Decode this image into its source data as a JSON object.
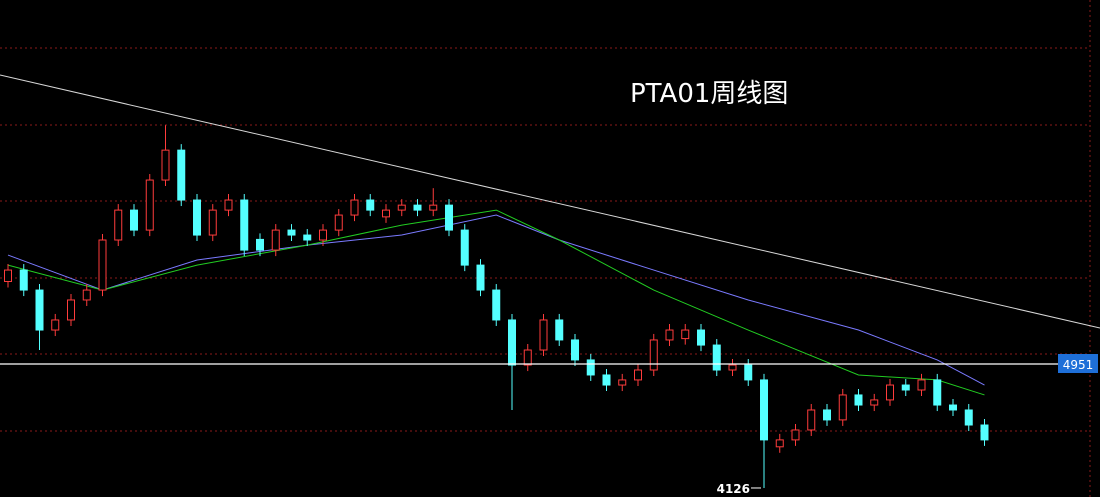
{
  "chart_data": {
    "type": "candlestick",
    "title": "PTA01周线图",
    "open": [
      5500,
      5576,
      5443,
      5177,
      5244,
      5377,
      5443,
      5776,
      5975,
      5842,
      6175,
      6374,
      6042,
      5809,
      5975,
      6042,
      5780,
      5709,
      5842,
      5809,
      5776,
      5842,
      5942,
      6042,
      5930,
      5975,
      6008,
      5975,
      6008,
      5842,
      5609,
      5443,
      5244,
      4944,
      5044,
      5244,
      5111,
      4978,
      4878,
      4811,
      4845,
      4911,
      5111,
      5120,
      5177,
      5077,
      4911,
      4944,
      4845,
      4400,
      4446,
      4512,
      4645,
      4579,
      4745,
      4678,
      4712,
      4811,
      4778,
      4845,
      4678,
      4645,
      4545
    ],
    "high": [
      5616,
      5616,
      5483,
      5284,
      5417,
      5483,
      5816,
      6015,
      6015,
      6215,
      6540,
      6414,
      6082,
      6015,
      6082,
      6082,
      5820,
      5882,
      5882,
      5849,
      5882,
      5982,
      6082,
      6082,
      6015,
      6048,
      6048,
      6121,
      6048,
      5882,
      5649,
      5483,
      5284,
      5084,
      5284,
      5284,
      5151,
      5018,
      4918,
      4885,
      4951,
      5151,
      5217,
      5217,
      5217,
      5117,
      4984,
      4984,
      4885,
      4486,
      4552,
      4685,
      4685,
      4785,
      4785,
      4752,
      4851,
      4851,
      4885,
      4885,
      4718,
      4685,
      4585
    ],
    "low": [
      5460,
      5403,
      5044,
      5137,
      5204,
      5337,
      5403,
      5736,
      5802,
      5802,
      6135,
      6002,
      5769,
      5769,
      5935,
      5669,
      5669,
      5669,
      5769,
      5736,
      5736,
      5802,
      5902,
      5935,
      5890,
      5935,
      5935,
      5935,
      5802,
      5569,
      5403,
      5204,
      4645,
      4904,
      5004,
      5071,
      4938,
      4838,
      4771,
      4771,
      4805,
      4871,
      5071,
      5080,
      5037,
      4871,
      4871,
      4805,
      4126,
      4360,
      4406,
      4472,
      4539,
      4539,
      4638,
      4638,
      4672,
      4738,
      4738,
      4638,
      4605,
      4505,
      4406
    ],
    "close": [
      5576,
      5443,
      5177,
      5244,
      5377,
      5443,
      5776,
      5975,
      5842,
      6175,
      6374,
      6042,
      5809,
      5975,
      6042,
      5709,
      5709,
      5842,
      5809,
      5776,
      5842,
      5942,
      6042,
      5975,
      5975,
      6008,
      5975,
      6008,
      5842,
      5609,
      5443,
      5244,
      4944,
      5044,
      5244,
      5111,
      4978,
      4878,
      4811,
      4845,
      4911,
      5111,
      5177,
      5177,
      5077,
      4911,
      4944,
      4845,
      4446,
      4446,
      4512,
      4645,
      4579,
      4745,
      4678,
      4712,
      4811,
      4778,
      4845,
      4678,
      4645,
      4545,
      4446
    ],
    "up_color": "#ff3c3c",
    "down_color": "#54ffff",
    "lines": [
      {
        "color": "#7a7aff",
        "x": [
          0,
          6,
          12,
          19,
          25,
          31,
          35,
          41,
          47,
          54,
          59,
          62
        ],
        "values": [
          5676,
          5443,
          5643,
          5742,
          5809,
          5942,
          5776,
          5576,
          5377,
          5177,
          4978,
          4811
        ]
      },
      {
        "color": "#22cc22",
        "x": [
          0,
          6,
          12,
          19,
          25,
          31,
          35,
          41,
          47,
          54,
          59,
          62
        ],
        "values": [
          5609,
          5443,
          5609,
          5742,
          5875,
          5975,
          5776,
          5443,
          5177,
          4878,
          4845,
          4745
        ]
      }
    ],
    "reference_line": 4951,
    "ylim": [
      4066,
      7373
    ]
  }
}
